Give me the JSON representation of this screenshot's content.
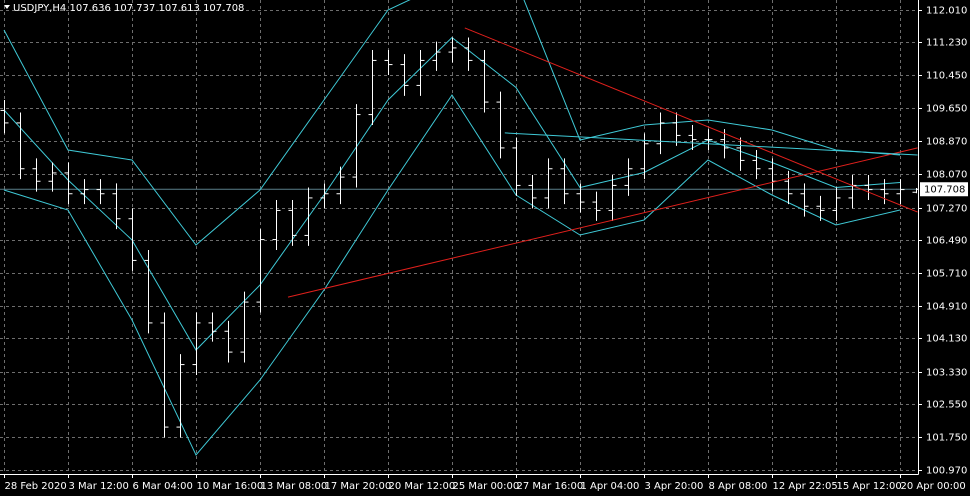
{
  "chart_data": {
    "type": "ohlc",
    "title": "USDJPY,H4  107.636 107.737 107.613 107.708",
    "candles": {
      "color": "#ffffff",
      "open": [
        109.6,
        109.3,
        108.2,
        107.9,
        108.1,
        107.6,
        107.7,
        107.6,
        107.0,
        106.0,
        104.5,
        102.0,
        103.5,
        104.5,
        104.3,
        103.8,
        105.0,
        106.5,
        107.2,
        106.6,
        107.5,
        107.6,
        108.0,
        109.5,
        110.8,
        110.7,
        110.2,
        110.8,
        111.0,
        111.1,
        110.8,
        109.8,
        108.7,
        107.8,
        107.5,
        108.2,
        107.6,
        107.4,
        107.2,
        107.8,
        108.2,
        108.8,
        109.3,
        109.0,
        108.9,
        108.9,
        108.7,
        108.4,
        108.2,
        107.9,
        107.6,
        107.3,
        107.2,
        107.5,
        107.8,
        107.7,
        107.6,
        107.636
      ],
      "high": [
        109.85,
        109.55,
        108.45,
        108.35,
        108.35,
        107.95,
        107.95,
        107.85,
        107.25,
        106.25,
        104.75,
        103.75,
        104.75,
        104.75,
        104.55,
        105.25,
        106.75,
        107.45,
        107.45,
        107.75,
        107.85,
        108.25,
        109.75,
        111.05,
        111.05,
        110.95,
        111.05,
        111.25,
        111.35,
        111.35,
        111.05,
        110.05,
        108.95,
        108.05,
        108.45,
        108.45,
        107.85,
        107.65,
        108.05,
        108.45,
        109.05,
        109.55,
        109.55,
        109.25,
        109.15,
        109.15,
        108.95,
        108.65,
        108.45,
        108.15,
        107.85,
        107.55,
        107.75,
        108.05,
        108.05,
        107.95,
        107.95,
        107.737
      ],
      "low": [
        109.05,
        107.95,
        107.65,
        107.65,
        107.35,
        107.35,
        107.35,
        106.75,
        105.75,
        104.25,
        101.75,
        101.75,
        103.25,
        104.05,
        103.55,
        103.55,
        104.75,
        106.25,
        106.35,
        106.35,
        107.25,
        107.35,
        107.75,
        109.25,
        110.45,
        109.95,
        109.95,
        110.55,
        110.75,
        110.55,
        109.55,
        108.45,
        107.55,
        107.25,
        107.25,
        107.35,
        107.15,
        106.95,
        106.95,
        107.55,
        107.95,
        108.55,
        108.75,
        108.65,
        108.65,
        108.45,
        108.15,
        107.95,
        107.65,
        107.35,
        107.05,
        106.95,
        106.95,
        107.25,
        107.45,
        107.35,
        107.35,
        107.613
      ],
      "close": [
        109.3,
        108.2,
        107.9,
        108.1,
        107.6,
        107.7,
        107.6,
        107.0,
        106.0,
        104.5,
        102.0,
        103.5,
        104.5,
        104.3,
        103.8,
        105.0,
        106.5,
        107.2,
        106.6,
        107.5,
        107.6,
        108.0,
        109.5,
        110.8,
        110.7,
        110.2,
        110.8,
        111.0,
        111.1,
        110.8,
        109.8,
        108.7,
        107.8,
        107.5,
        108.2,
        107.6,
        107.4,
        107.2,
        107.8,
        108.2,
        108.8,
        109.3,
        109.0,
        108.9,
        108.9,
        108.7,
        108.4,
        108.2,
        107.9,
        107.6,
        107.3,
        107.2,
        107.5,
        107.8,
        107.7,
        107.6,
        107.7,
        107.708
      ]
    },
    "bands": [
      {
        "color": "#3fc9d6",
        "x": [
          0,
          4,
          8,
          12,
          16,
          20,
          24,
          28,
          32,
          36,
          40,
          44,
          48,
          52,
          56
        ],
        "values": [
          111.53,
          108.65,
          108.41,
          106.37,
          107.69,
          109.85,
          112.01,
          112.73,
          112.73,
          108.89,
          109.25,
          109.37,
          109.13,
          108.65,
          108.53
        ]
      },
      {
        "color": "#3fc9d6",
        "x": [
          0,
          4,
          8,
          12,
          16,
          20,
          24,
          28,
          32,
          36,
          40,
          44,
          48,
          52,
          56
        ],
        "values": [
          109.61,
          107.93,
          106.49,
          103.85,
          105.41,
          107.57,
          109.85,
          111.35,
          110.15,
          107.75,
          108.11,
          108.89,
          108.35,
          107.75,
          107.87
        ]
      },
      {
        "color": "#3fc9d6",
        "x": [
          0,
          4,
          8,
          12,
          16,
          20,
          24,
          28,
          32,
          36,
          40,
          44,
          48,
          52,
          56
        ],
        "values": [
          107.69,
          107.21,
          104.57,
          101.33,
          103.13,
          105.29,
          107.69,
          109.97,
          107.57,
          106.61,
          106.97,
          108.41,
          107.57,
          106.85,
          107.21
        ]
      }
    ],
    "trendlines": [
      {
        "color": "#e0201c",
        "x": [
          17.75,
          57.1
        ],
        "values": [
          105.12,
          108.7
        ]
      },
      {
        "color": "#e0201c",
        "x": [
          28.8,
          57.1
        ],
        "values": [
          111.58,
          107.16
        ]
      },
      {
        "color": "#3fc9d6",
        "x": [
          31.3,
          57.1
        ],
        "values": [
          109.06,
          108.53
        ]
      }
    ],
    "price_line": {
      "value": 107.708,
      "color": "#5a7f8a"
    },
    "current_price": 107.708,
    "xlim": [
      -0.25,
      57.125
    ],
    "ylim": [
      100.874,
      112.25
    ],
    "grid": true,
    "yticks": [
      {
        "value": 112.01,
        "label": "112.010"
      },
      {
        "value": 111.23,
        "label": "111.230"
      },
      {
        "value": 110.45,
        "label": "110.450"
      },
      {
        "value": 109.65,
        "label": "109.650"
      },
      {
        "value": 108.87,
        "label": "108.870"
      },
      {
        "value": 108.07,
        "label": "108.070"
      },
      {
        "value": 107.27,
        "label": "107.270"
      },
      {
        "value": 106.49,
        "label": "106.490"
      },
      {
        "value": 105.71,
        "label": "105.710"
      },
      {
        "value": 104.91,
        "label": "104.910"
      },
      {
        "value": 104.13,
        "label": "104.130"
      },
      {
        "value": 103.33,
        "label": "103.330"
      },
      {
        "value": 102.55,
        "label": "102.550"
      },
      {
        "value": 101.75,
        "label": "101.750"
      },
      {
        "value": 100.97,
        "label": "100.970"
      }
    ],
    "xticks": [
      {
        "value": 0,
        "label": "28 Feb 2020"
      },
      {
        "value": 4,
        "label": "3 Mar 12:00"
      },
      {
        "value": 8,
        "label": "6 Mar 04:00"
      },
      {
        "value": 12,
        "label": "10 Mar 16:00"
      },
      {
        "value": 16,
        "label": "13 Mar 08:00"
      },
      {
        "value": 20,
        "label": "17 Mar 20:00"
      },
      {
        "value": 24,
        "label": "20 Mar 12:00"
      },
      {
        "value": 28,
        "label": "25 Mar 00:00"
      },
      {
        "value": 32,
        "label": "27 Mar 16:00"
      },
      {
        "value": 36,
        "label": "1 Apr 04:00"
      },
      {
        "value": 40,
        "label": "3 Apr 20:00"
      },
      {
        "value": 44,
        "label": "8 Apr 08:00"
      },
      {
        "value": 48,
        "label": "12 Apr 22:05"
      },
      {
        "value": 52,
        "label": "15 Apr 12:00"
      },
      {
        "value": 56,
        "label": "20 Apr 00:00"
      }
    ]
  }
}
